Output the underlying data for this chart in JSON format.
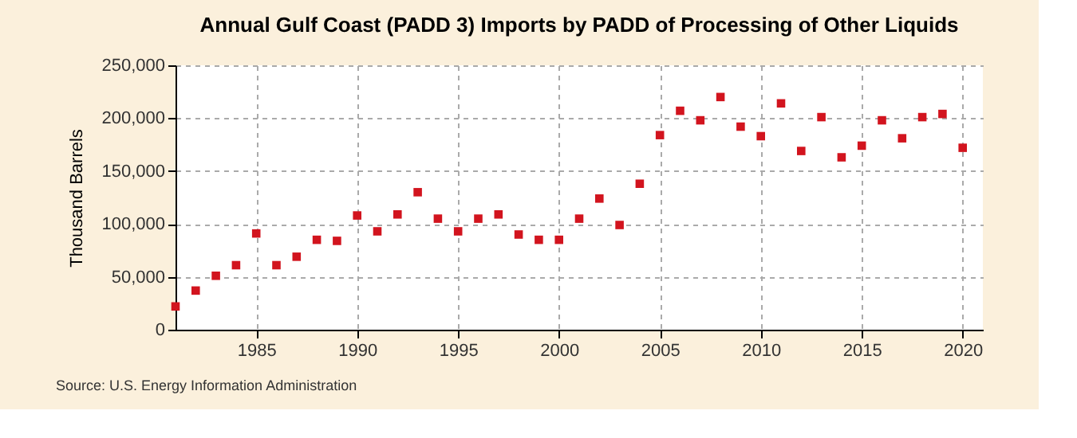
{
  "chart_data": {
    "type": "scatter",
    "title": "Annual Gulf Coast (PADD 3) Imports by PADD of Processing of Other Liquids",
    "ylabel": "Thousand Barrels",
    "x": [
      1981,
      1982,
      1983,
      1984,
      1985,
      1986,
      1987,
      1988,
      1989,
      1990,
      1991,
      1992,
      1993,
      1994,
      1995,
      1996,
      1997,
      1998,
      1999,
      2000,
      2001,
      2002,
      2003,
      2004,
      2005,
      2006,
      2007,
      2008,
      2009,
      2010,
      2011,
      2012,
      2013,
      2014,
      2015,
      2016,
      2017,
      2018,
      2019,
      2020
    ],
    "values": [
      22000,
      37000,
      51000,
      61000,
      91000,
      61000,
      69000,
      85000,
      84000,
      108000,
      93000,
      109000,
      130000,
      105000,
      93000,
      105000,
      109000,
      90000,
      85000,
      85000,
      105000,
      124000,
      99000,
      138000,
      184000,
      207000,
      198000,
      220000,
      192000,
      183000,
      214000,
      169000,
      201000,
      163000,
      174000,
      198000,
      181000,
      201000,
      204000,
      172000
    ],
    "color": "#d2141e",
    "marker": "square",
    "xlim": [
      1981,
      2021
    ],
    "xticks": [
      1985,
      1990,
      1995,
      2000,
      2005,
      2010,
      2015,
      2020
    ],
    "ylim": [
      0,
      250000
    ],
    "yticks": [
      0,
      {
        "value": 50000,
        "label": "50,000"
      },
      {
        "value": 100000,
        "label": "100,000"
      },
      {
        "value": 150000,
        "label": "150,000"
      },
      {
        "value": 200000,
        "label": "200,000"
      },
      {
        "value": 250000,
        "label": "250,000"
      }
    ],
    "grid": true,
    "annotations": [
      "Source: U.S. Energy Information Administration"
    ]
  }
}
